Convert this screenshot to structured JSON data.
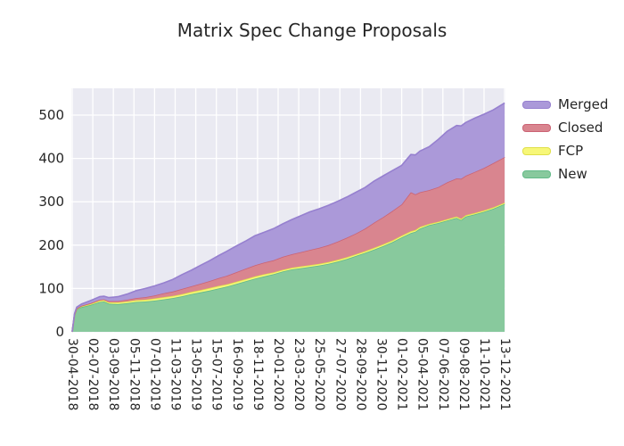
{
  "title": "Matrix Spec Change Proposals",
  "legend": [
    {
      "label": "Merged",
      "fill": "#ab99d9",
      "edge": "#9680cf"
    },
    {
      "label": "Closed",
      "fill": "#d9858f",
      "edge": "#cb6374"
    },
    {
      "label": "FCP",
      "fill": "#f7f778",
      "edge": "#e0e04a"
    },
    {
      "label": "New",
      "fill": "#88c99d",
      "edge": "#62ba88"
    }
  ],
  "colors": {
    "figure_background": "#ffffff",
    "plot_background": "#eaeaf2",
    "gridline": "#ffffff",
    "text": "#262626"
  },
  "chart_data": {
    "type": "area",
    "stacked": true,
    "title": "Matrix Spec Change Proposals",
    "xlabel": "",
    "ylabel": "",
    "grid": true,
    "legend_position": "right-outside",
    "stack_order_bottom_to_top": [
      "New",
      "FCP",
      "Closed",
      "Merged"
    ],
    "x_unit": "weeks since 2018-04-30",
    "x_range_weeks": [
      0,
      189
    ],
    "ylim": [
      0,
      560
    ],
    "yticks": [
      0,
      100,
      200,
      300,
      400,
      500
    ],
    "xtick_weeks": [
      0,
      9,
      18,
      27,
      36,
      45,
      54,
      63,
      72,
      81,
      90,
      99,
      108,
      117,
      126,
      135,
      144,
      153,
      162,
      171,
      180,
      189
    ],
    "xticklabels": [
      "30-04-2018",
      "02-07-2018",
      "03-09-2018",
      "05-11-2018",
      "07-01-2019",
      "11-03-2019",
      "13-05-2019",
      "15-07-2019",
      "16-09-2019",
      "18-11-2019",
      "20-01-2020",
      "23-03-2020",
      "25-05-2020",
      "27-07-2020",
      "28-09-2020",
      "30-11-2020",
      "01-02-2021",
      "05-04-2021",
      "07-06-2021",
      "09-08-2021",
      "11-10-2021",
      "13-12-2021"
    ],
    "series_note": "points are [week, New, FCP, Closed, Merged] band heights (stacked bottom-to-top); approximate values read from chart",
    "points": [
      [
        0,
        0,
        0,
        0,
        0
      ],
      [
        1,
        38,
        1,
        1,
        2
      ],
      [
        2,
        52,
        1,
        1,
        3
      ],
      [
        4,
        57,
        2,
        1,
        4
      ],
      [
        8,
        62,
        2,
        2,
        6
      ],
      [
        12,
        69,
        3,
        2,
        7
      ],
      [
        14,
        70,
        3,
        2,
        7
      ],
      [
        16,
        65,
        3,
        3,
        8
      ],
      [
        20,
        64,
        4,
        3,
        10
      ],
      [
        24,
        66,
        4,
        4,
        13
      ],
      [
        28,
        69,
        4,
        5,
        17
      ],
      [
        32,
        70,
        4,
        6,
        20
      ],
      [
        36,
        72,
        5,
        7,
        22
      ],
      [
        40,
        75,
        5,
        9,
        24
      ],
      [
        44,
        78,
        5,
        10,
        28
      ],
      [
        48,
        82,
        5,
        12,
        33
      ],
      [
        52,
        87,
        5,
        13,
        37
      ],
      [
        56,
        91,
        5,
        15,
        42
      ],
      [
        60,
        95,
        6,
        16,
        47
      ],
      [
        64,
        100,
        6,
        18,
        52
      ],
      [
        68,
        105,
        5,
        20,
        57
      ],
      [
        72,
        111,
        5,
        22,
        61
      ],
      [
        76,
        117,
        5,
        24,
        64
      ],
      [
        80,
        123,
        5,
        26,
        68
      ],
      [
        84,
        128,
        5,
        27,
        70
      ],
      [
        88,
        133,
        4,
        28,
        73
      ],
      [
        92,
        139,
        4,
        30,
        76
      ],
      [
        96,
        144,
        4,
        31,
        80
      ],
      [
        100,
        147,
        4,
        33,
        84
      ],
      [
        104,
        150,
        4,
        35,
        88
      ],
      [
        108,
        153,
        4,
        37,
        90
      ],
      [
        112,
        157,
        4,
        39,
        92
      ],
      [
        116,
        162,
        4,
        42,
        93
      ],
      [
        120,
        168,
        4,
        45,
        94
      ],
      [
        124,
        175,
        4,
        48,
        95
      ],
      [
        128,
        182,
        4,
        52,
        95
      ],
      [
        132,
        190,
        4,
        58,
        96
      ],
      [
        136,
        198,
        4,
        63,
        95
      ],
      [
        140,
        207,
        4,
        68,
        93
      ],
      [
        144,
        218,
        4,
        72,
        90
      ],
      [
        148,
        228,
        4,
        90,
        87
      ],
      [
        150,
        231,
        4,
        82,
        91
      ],
      [
        152,
        238,
        4,
        80,
        95
      ],
      [
        156,
        246,
        3,
        78,
        100
      ],
      [
        160,
        251,
        3,
        80,
        110
      ],
      [
        164,
        257,
        3,
        85,
        118
      ],
      [
        168,
        263,
        3,
        88,
        122
      ],
      [
        170,
        258,
        3,
        92,
        122
      ],
      [
        172,
        266,
        3,
        91,
        123
      ],
      [
        176,
        271,
        3,
        95,
        124
      ],
      [
        180,
        277,
        3,
        98,
        124
      ],
      [
        184,
        284,
        3,
        102,
        123
      ],
      [
        189,
        295,
        3,
        105,
        125
      ]
    ]
  }
}
